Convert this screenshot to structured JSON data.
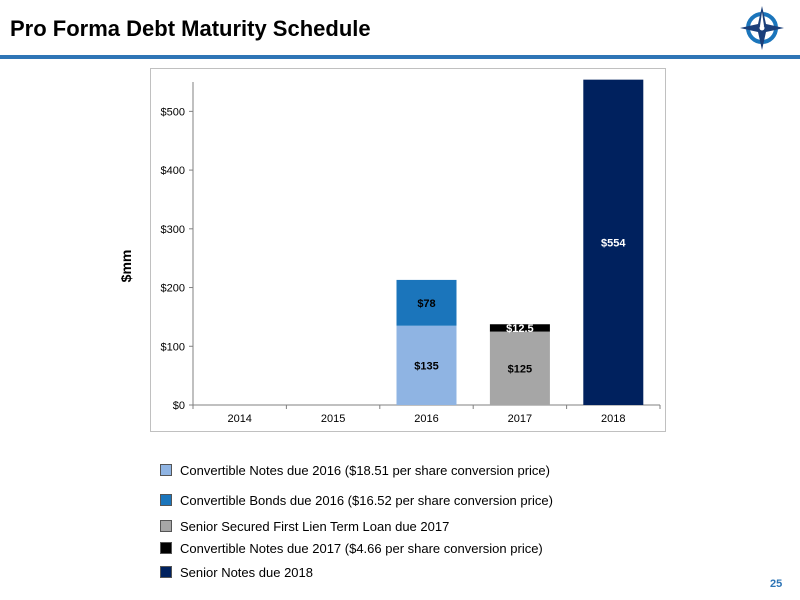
{
  "header": {
    "title": "Pro Forma Debt Maturity Schedule",
    "logo_icon": "compass-star-icon"
  },
  "page_number": "25",
  "colors": {
    "rule": "#2e75b6",
    "light_blue": "#8fb4e3",
    "mid_blue": "#1b75bb",
    "gray": "#a6a6a6",
    "black": "#000000",
    "navy": "#00215e"
  },
  "chart_data": {
    "type": "bar",
    "stacked": true,
    "title": "",
    "xlabel": "",
    "ylabel": "$mm",
    "categories": [
      "2014",
      "2015",
      "2016",
      "2017",
      "2018"
    ],
    "ylim": [
      0,
      550
    ],
    "yticks": [
      0,
      100,
      200,
      300,
      400,
      500
    ],
    "ytick_labels": [
      "$0",
      "$100",
      "$200",
      "$300",
      "$400",
      "$500"
    ],
    "grid": false,
    "legend_position": "bottom",
    "series": [
      {
        "name": "Convertible Notes due 2016 ($18.51 per share conversion price)",
        "color": "#8fb4e3",
        "values": [
          0,
          0,
          135,
          0,
          0
        ],
        "labels": [
          "",
          "",
          "$135",
          "",
          ""
        ]
      },
      {
        "name": "Convertible Bonds due 2016 ($16.52 per share conversion price)",
        "color": "#1b75bb",
        "values": [
          0,
          0,
          78,
          0,
          0
        ],
        "labels": [
          "",
          "",
          "$78",
          "",
          ""
        ]
      },
      {
        "name": "Senior Secured First Lien Term Loan due 2017",
        "color": "#a6a6a6",
        "values": [
          0,
          0,
          0,
          125,
          0
        ],
        "labels": [
          "",
          "",
          "",
          "$125",
          ""
        ]
      },
      {
        "name": "Convertible Notes due 2017 ($4.66 per share conversion price)",
        "color": "#000000",
        "values": [
          0,
          0,
          0,
          12.5,
          0
        ],
        "labels": [
          "",
          "",
          "",
          "$12.5",
          ""
        ]
      },
      {
        "name": "Senior Notes due 2018",
        "color": "#00215e",
        "values": [
          0,
          0,
          0,
          0,
          554
        ],
        "labels": [
          "",
          "",
          "",
          "",
          "$554"
        ]
      }
    ]
  }
}
